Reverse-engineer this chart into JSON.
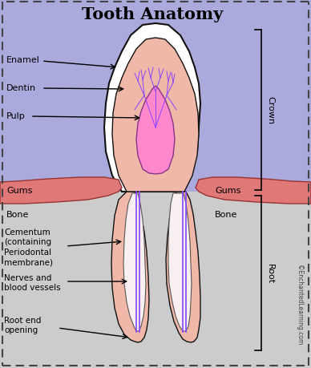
{
  "title": "Tooth Anatomy",
  "colors": {
    "enamel": "#ffffff",
    "dentin": "#f0b8a8",
    "pulp": "#ff88cc",
    "gums": "#e07878",
    "bone": "#d0d0d0",
    "nerve_blue": "#8844ff",
    "crown_bg": "#aaaadd",
    "root_bg": "#cccccc",
    "canal_white": "#f8f0f0",
    "outline": "#111111"
  },
  "labels": {
    "title": "Tooth Anatomy",
    "enamel": "Enamel",
    "dentin": "Dentin",
    "pulp": "Pulp",
    "gums_left": "Gums",
    "gums_right": "Gums",
    "bone_left": "Bone",
    "bone_right": "Bone",
    "cementum": "Cementum\n(containing\nPeriodontal\nmembrane)",
    "nerves": "Nerves and\nblood vessels",
    "root_end": "Root end\nopening",
    "crown": "Crown",
    "root": "Root",
    "watermark": "©EnchantedLearning.com"
  },
  "figsize": [
    3.88,
    4.6
  ],
  "dpi": 100
}
